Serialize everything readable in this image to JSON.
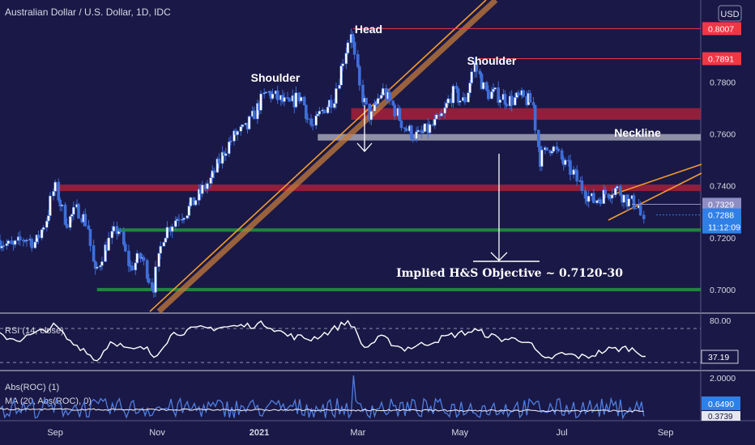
{
  "header": {
    "title": "Australian Dollar / U.S. Dollar, 1D, IDC",
    "currency": "USD"
  },
  "colors": {
    "background": "#1a1846",
    "candle": "#ffffff",
    "candle_border": "#3f6fd9",
    "resistance_red": "#a8203a",
    "support_green": "#1f9a3a",
    "neckline_gray": "#b7b7c7",
    "trend_orange": "#f39c2b",
    "level_red_label": "#f23645",
    "price_blue": "#2f7fe6",
    "rsi_line": "#ffffff",
    "roc_line": "#4f7fe0",
    "ma_line": "#ffffff"
  },
  "chart_data": [
    {
      "type": "candlestick",
      "title": "Australian Dollar / U.S. Dollar, 1D, IDC",
      "x_ticks": [
        "Sep",
        "Nov",
        "2021",
        "Mar",
        "May",
        "Jul",
        "Sep"
      ],
      "y_ticks": [
        "0.7800",
        "0.7600",
        "0.7400",
        "0.7200",
        "0.7000"
      ],
      "ylim": [
        0.6915,
        0.8055
      ],
      "x_range": [
        "2020-07-30",
        "2021-09-22"
      ],
      "series": [
        {
          "points": [
            [
              "2020-07-30",
              0.719
            ],
            [
              "2020-08-07",
              0.716
            ],
            [
              "2020-08-14",
              0.72
            ],
            [
              "2020-08-21",
              0.718
            ],
            [
              "2020-08-28",
              0.729
            ],
            [
              "2020-09-01",
              0.74
            ],
            [
              "2020-09-08",
              0.726
            ],
            [
              "2020-09-15",
              0.731
            ],
            [
              "2020-09-21",
              0.725
            ],
            [
              "2020-09-25",
              0.705
            ],
            [
              "2020-10-01",
              0.716
            ],
            [
              "2020-10-09",
              0.724
            ],
            [
              "2020-10-16",
              0.708
            ],
            [
              "2020-10-23",
              0.713
            ],
            [
              "2020-10-30",
              0.7
            ],
            [
              "2020-11-05",
              0.721
            ],
            [
              "2020-11-12",
              0.727
            ],
            [
              "2020-11-20",
              0.731
            ],
            [
              "2020-11-27",
              0.737
            ],
            [
              "2020-12-04",
              0.743
            ],
            [
              "2020-12-11",
              0.753
            ],
            [
              "2020-12-18",
              0.76
            ],
            [
              "2020-12-25",
              0.762
            ],
            [
              "2020-12-31",
              0.77
            ],
            [
              "2021-01-06",
              0.776
            ],
            [
              "2021-01-12",
              0.774
            ],
            [
              "2021-01-19",
              0.771
            ],
            [
              "2021-01-26",
              0.775
            ],
            [
              "2021-02-02",
              0.762
            ],
            [
              "2021-02-09",
              0.77
            ],
            [
              "2021-02-15",
              0.774
            ],
            [
              "2021-02-25",
              0.8
            ],
            [
              "2021-03-03",
              0.776
            ],
            [
              "2021-03-09",
              0.766
            ],
            [
              "2021-03-16",
              0.777
            ],
            [
              "2021-03-23",
              0.77
            ],
            [
              "2021-03-30",
              0.762
            ],
            [
              "2021-04-06",
              0.759
            ],
            [
              "2021-04-13",
              0.762
            ],
            [
              "2021-04-20",
              0.766
            ],
            [
              "2021-04-27",
              0.776
            ],
            [
              "2021-05-04",
              0.772
            ],
            [
              "2021-05-10",
              0.787
            ],
            [
              "2021-05-17",
              0.776
            ],
            [
              "2021-05-24",
              0.775
            ],
            [
              "2021-05-31",
              0.773
            ],
            [
              "2021-06-07",
              0.774
            ],
            [
              "2021-06-14",
              0.772
            ],
            [
              "2021-06-18",
              0.75
            ],
            [
              "2021-06-25",
              0.756
            ],
            [
              "2021-07-02",
              0.749
            ],
            [
              "2021-07-08",
              0.745
            ],
            [
              "2021-07-15",
              0.738
            ],
            [
              "2021-07-20",
              0.734
            ],
            [
              "2021-07-27",
              0.737
            ],
            [
              "2021-08-03",
              0.739
            ],
            [
              "2021-08-10",
              0.734
            ],
            [
              "2021-08-16",
              0.733
            ],
            [
              "2021-08-20",
              0.722
            ]
          ]
        }
      ],
      "horizontal_levels": [
        {
          "value": 0.8007,
          "label": "0.8007",
          "color": "#f23645"
        },
        {
          "value": 0.7891,
          "label": "0.7891",
          "color": "#f23645"
        }
      ],
      "zones": [
        {
          "name": "resistance-zone-upper",
          "from": 0.7655,
          "to": 0.77,
          "x_start": "2021-02-25",
          "color": "#a8203a"
        },
        {
          "name": "resistance-zone-lower",
          "from": 0.738,
          "to": 0.7405,
          "x_start": "2020-09-01",
          "color": "#a8203a"
        },
        {
          "name": "neckline-zone",
          "from": 0.7575,
          "to": 0.76,
          "x_start": "2021-02-05",
          "color": "#b7b7c7"
        },
        {
          "name": "support-zone-upper",
          "from": 0.7223,
          "to": 0.7236,
          "x_start": "2020-10-08",
          "color": "#1f9a3a"
        },
        {
          "name": "support-zone-lower",
          "from": 0.6993,
          "to": 0.7006,
          "x_start": "2020-09-26",
          "color": "#1f9a3a"
        }
      ],
      "price_labels": [
        {
          "value": 0.7329,
          "label": "0.7329",
          "color": "#8e8ec4"
        },
        {
          "value": 0.7288,
          "label": "0.7288",
          "sub": "11:12:09",
          "color": "#2f7fe6"
        }
      ],
      "annotations": {
        "head": "Head",
        "left_shoulder": "Shoulder",
        "right_shoulder": "Shoulder",
        "neckline": "Neckline",
        "objective": "Implied H&S Objective ~ 0.7120-30"
      }
    },
    {
      "type": "line",
      "title": "RSI (14, close)",
      "y_ticks": [
        "80.00"
      ],
      "ylim": [
        20,
        85
      ],
      "current_label": "37.19",
      "series": [
        {
          "name": "RSI (14, close)",
          "points": [
            [
              "2020-07-30",
              60
            ],
            [
              "2020-08-10",
              55
            ],
            [
              "2020-08-20",
              62
            ],
            [
              "2020-09-01",
              72
            ],
            [
              "2020-09-10",
              52
            ],
            [
              "2020-09-20",
              42
            ],
            [
              "2020-09-25",
              28
            ],
            [
              "2020-10-05",
              55
            ],
            [
              "2020-10-15",
              42
            ],
            [
              "2020-10-25",
              45
            ],
            [
              "2020-10-30",
              35
            ],
            [
              "2020-11-10",
              62
            ],
            [
              "2020-11-25",
              68
            ],
            [
              "2020-12-10",
              70
            ],
            [
              "2020-12-25",
              72
            ],
            [
              "2021-01-05",
              74
            ],
            [
              "2021-01-18",
              60
            ],
            [
              "2021-02-01",
              56
            ],
            [
              "2021-02-12",
              65
            ],
            [
              "2021-02-24",
              78
            ],
            [
              "2021-03-05",
              45
            ],
            [
              "2021-03-15",
              58
            ],
            [
              "2021-03-28",
              44
            ],
            [
              "2021-04-10",
              50
            ],
            [
              "2021-04-25",
              60
            ],
            [
              "2021-05-10",
              66
            ],
            [
              "2021-05-25",
              56
            ],
            [
              "2021-06-10",
              55
            ],
            [
              "2021-06-20",
              30
            ],
            [
              "2021-07-01",
              38
            ],
            [
              "2021-07-15",
              34
            ],
            [
              "2021-07-28",
              43
            ],
            [
              "2021-08-10",
              45
            ],
            [
              "2021-08-20",
              37.19
            ]
          ]
        }
      ]
    },
    {
      "type": "line",
      "title": "Abs(ROC) (1)",
      "y_ticks": [
        "2.0000"
      ],
      "ylim": [
        0,
        2.15
      ],
      "labels": [
        "0.6490",
        "0.3739"
      ],
      "series": [
        {
          "name": "Abs(ROC) (1)",
          "points": [
            [
              "2020-07-30",
              0.4
            ],
            [
              "2021-02-26",
              2.0
            ],
            [
              "2021-08-20",
              0.649
            ]
          ]
        },
        {
          "name": "MA (20, Abs(ROC), 0)",
          "points": [
            [
              "2020-07-30",
              0.45
            ],
            [
              "2021-02-26",
              0.55
            ],
            [
              "2021-08-20",
              0.3739
            ]
          ]
        }
      ]
    }
  ]
}
